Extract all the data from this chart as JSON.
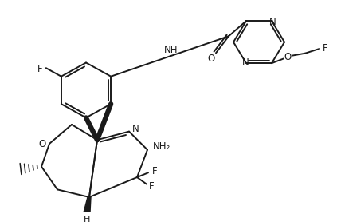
{
  "background": "#ffffff",
  "line_color": "#1a1a1a",
  "lw": 1.4,
  "figsize": [
    4.28,
    2.78
  ],
  "dpi": 100,
  "xlim": [
    0,
    428
  ],
  "ylim": [
    0,
    278
  ]
}
